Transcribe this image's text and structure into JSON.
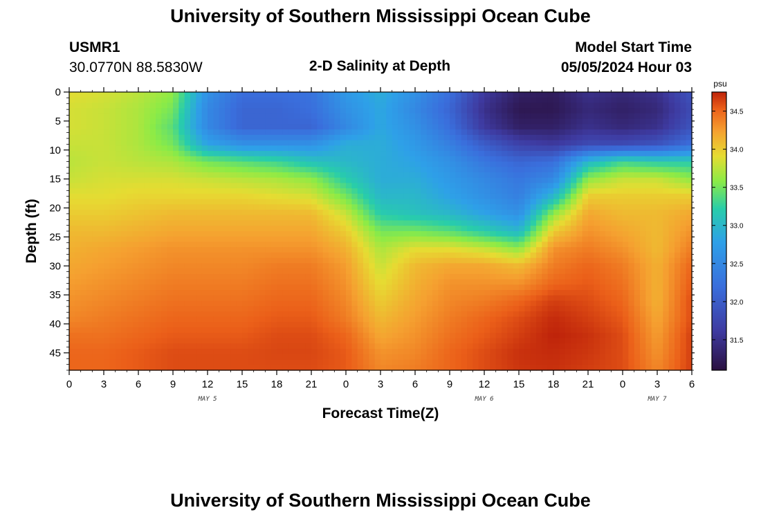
{
  "top_title": "University of Southern Mississippi Ocean Cube",
  "bottom_title": "University of Southern Mississippi Ocean Cube",
  "station": {
    "id": "USMR1",
    "coords": "30.0770N  88.5830W"
  },
  "model_start": {
    "label": "Model Start Time",
    "value": "05/05/2024 Hour 03"
  },
  "colors": {
    "low": "#2a1040",
    "mid_low": "#3a4ab8",
    "mid": "#2ea0e8",
    "mid_high": "#a8ee3a",
    "high": "#f5a030",
    "max": "#c02808"
  },
  "chart_data": {
    "type": "heatmap",
    "title": "2-D Salinity at Depth",
    "xlabel": "Forecast Time(Z)",
    "ylabel": "Depth (ft)",
    "colorbar_unit": "psu",
    "colorbar_ticks": [
      "34.5",
      "34.0",
      "33.5",
      "33.0",
      "32.5",
      "32.0",
      "31.5"
    ],
    "colorbar_tick_values": [
      34.5,
      34.0,
      33.5,
      33.0,
      32.5,
      32.0,
      31.5
    ],
    "colorbar_range": [
      31.1,
      34.75
    ],
    "x_tick_labels": [
      "0",
      "3",
      "6",
      "9",
      "12",
      "15",
      "18",
      "21",
      "0",
      "3",
      "6",
      "9",
      "12",
      "15",
      "18",
      "21",
      "0",
      "3",
      "6"
    ],
    "x_hours": [
      0,
      3,
      6,
      9,
      12,
      15,
      18,
      21,
      24,
      27,
      30,
      33,
      36,
      39,
      42,
      45,
      48,
      51,
      54
    ],
    "date_labels": [
      {
        "text": "MAY 5",
        "hour": 12
      },
      {
        "text": "MAY 6",
        "hour": 36
      },
      {
        "text": "MAY 7",
        "hour": 51
      }
    ],
    "y_tick_labels": [
      "0",
      "5",
      "10",
      "15",
      "20",
      "25",
      "30",
      "35",
      "40",
      "45"
    ],
    "y_depths": [
      0,
      5,
      10,
      15,
      20,
      25,
      30,
      35,
      40,
      45
    ],
    "xlim": [
      0,
      54
    ],
    "ylim": [
      0,
      48
    ],
    "grid": false,
    "grid_depths": [
      0,
      3,
      6,
      9,
      12,
      15,
      18,
      21,
      24,
      27,
      30,
      33,
      36,
      39,
      42,
      45,
      48
    ],
    "grid_hours": [
      0,
      3,
      6,
      9,
      12,
      15,
      18,
      21,
      24,
      27,
      30,
      33,
      36,
      39,
      42,
      45,
      48,
      51,
      54
    ],
    "salinity": [
      [
        33.9,
        33.85,
        33.75,
        33.6,
        32.6,
        32.2,
        32.2,
        32.25,
        32.7,
        32.9,
        32.6,
        32.2,
        31.6,
        31.3,
        31.25,
        31.5,
        31.4,
        31.5,
        31.9
      ],
      [
        33.85,
        33.8,
        33.7,
        33.5,
        32.5,
        32.1,
        32.1,
        32.2,
        32.6,
        32.85,
        32.5,
        32.1,
        31.5,
        31.2,
        31.2,
        31.4,
        31.3,
        31.4,
        31.8
      ],
      [
        33.85,
        33.8,
        33.7,
        33.4,
        32.5,
        32.1,
        32.1,
        32.1,
        32.5,
        32.85,
        32.6,
        32.2,
        31.6,
        31.3,
        31.3,
        31.5,
        31.4,
        31.5,
        31.9
      ],
      [
        33.8,
        33.8,
        33.7,
        33.5,
        32.8,
        32.6,
        32.6,
        32.6,
        32.9,
        32.9,
        32.7,
        32.4,
        32.0,
        31.7,
        31.6,
        31.8,
        31.8,
        31.9,
        32.2
      ],
      [
        33.75,
        33.8,
        33.75,
        33.7,
        33.5,
        33.4,
        33.3,
        33.1,
        33.0,
        32.9,
        32.8,
        32.6,
        32.3,
        32.1,
        32.2,
        33.0,
        33.3,
        33.2,
        33.2
      ],
      [
        33.8,
        33.85,
        33.85,
        33.85,
        33.8,
        33.75,
        33.7,
        33.6,
        33.2,
        32.9,
        32.9,
        32.7,
        32.5,
        32.3,
        32.5,
        33.6,
        33.8,
        33.8,
        33.6
      ],
      [
        33.9,
        33.9,
        33.95,
        33.95,
        33.95,
        33.95,
        33.9,
        33.85,
        33.5,
        33.0,
        33.0,
        32.8,
        32.6,
        32.4,
        33.0,
        34.0,
        34.0,
        34.0,
        34.0
      ],
      [
        34.0,
        34.0,
        34.05,
        34.1,
        34.1,
        34.1,
        34.1,
        34.1,
        33.8,
        33.2,
        33.1,
        33.0,
        32.8,
        32.6,
        33.6,
        34.2,
        34.1,
        34.1,
        34.2
      ],
      [
        34.1,
        34.1,
        34.15,
        34.2,
        34.2,
        34.2,
        34.2,
        34.2,
        34.0,
        33.5,
        33.5,
        33.4,
        33.2,
        33.0,
        34.0,
        34.3,
        34.2,
        34.1,
        34.3
      ],
      [
        34.15,
        34.2,
        34.25,
        34.3,
        34.3,
        34.3,
        34.3,
        34.3,
        34.15,
        33.7,
        33.9,
        33.9,
        33.8,
        33.6,
        34.3,
        34.4,
        34.3,
        34.1,
        34.4
      ],
      [
        34.2,
        34.25,
        34.3,
        34.35,
        34.35,
        34.35,
        34.4,
        34.4,
        34.25,
        33.8,
        34.1,
        34.2,
        34.2,
        34.1,
        34.4,
        34.5,
        34.4,
        34.15,
        34.5
      ],
      [
        34.25,
        34.3,
        34.35,
        34.4,
        34.4,
        34.4,
        34.45,
        34.45,
        34.3,
        33.9,
        34.15,
        34.3,
        34.3,
        34.3,
        34.5,
        34.55,
        34.45,
        34.15,
        34.55
      ],
      [
        34.3,
        34.35,
        34.4,
        34.45,
        34.45,
        34.45,
        34.5,
        34.5,
        34.35,
        34.0,
        34.2,
        34.35,
        34.4,
        34.5,
        34.65,
        34.6,
        34.5,
        34.15,
        34.6
      ],
      [
        34.35,
        34.4,
        34.45,
        34.5,
        34.5,
        34.5,
        34.55,
        34.55,
        34.4,
        34.1,
        34.25,
        34.4,
        34.5,
        34.6,
        34.72,
        34.65,
        34.55,
        34.2,
        34.6
      ],
      [
        34.45,
        34.45,
        34.5,
        34.55,
        34.55,
        34.55,
        34.6,
        34.6,
        34.5,
        34.2,
        34.3,
        34.45,
        34.55,
        34.65,
        34.75,
        34.7,
        34.6,
        34.25,
        34.65
      ],
      [
        34.5,
        34.5,
        34.55,
        34.6,
        34.6,
        34.6,
        34.62,
        34.62,
        34.55,
        34.3,
        34.35,
        34.5,
        34.6,
        34.7,
        34.72,
        34.68,
        34.6,
        34.3,
        34.65
      ],
      [
        34.5,
        34.5,
        34.55,
        34.6,
        34.6,
        34.6,
        34.6,
        34.6,
        34.55,
        34.35,
        34.4,
        34.5,
        34.6,
        34.68,
        34.7,
        34.65,
        34.6,
        34.35,
        34.65
      ]
    ]
  }
}
